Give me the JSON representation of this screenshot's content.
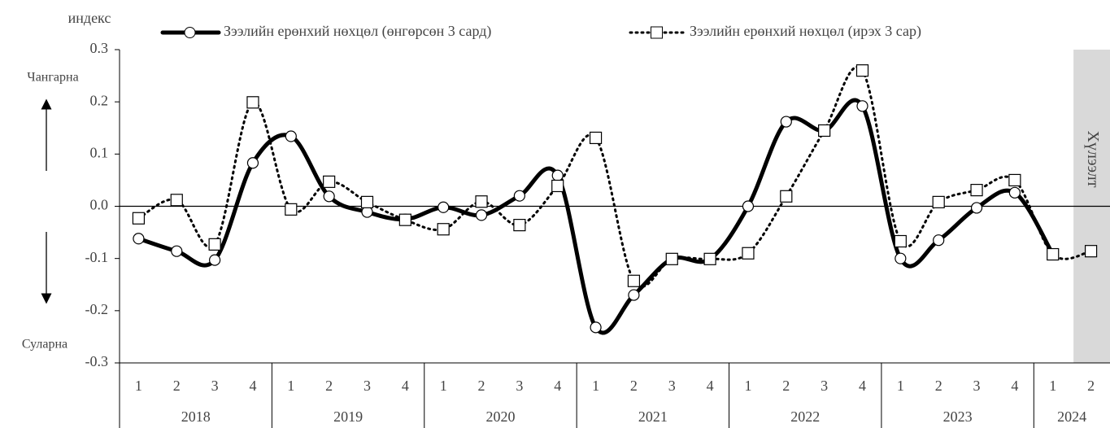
{
  "chart_data": {
    "type": "line",
    "y_label": "индекс",
    "upper_label": "Чангарна",
    "lower_label": "Суларна",
    "forecast_label": "Хүлээлт",
    "categories": [
      "1",
      "2",
      "3",
      "4",
      "1",
      "2",
      "3",
      "4",
      "1",
      "2",
      "3",
      "4",
      "1",
      "2",
      "3",
      "4",
      "1",
      "2",
      "3",
      "4",
      "1",
      "2",
      "3",
      "4",
      "1",
      "2"
    ],
    "groups": [
      {
        "label": "2018",
        "size": 4
      },
      {
        "label": "2019",
        "size": 4
      },
      {
        "label": "2020",
        "size": 4
      },
      {
        "label": "2021",
        "size": 4
      },
      {
        "label": "2022",
        "size": 4
      },
      {
        "label": "2023",
        "size": 4
      },
      {
        "label": "2024",
        "size": 2
      }
    ],
    "series": [
      {
        "name": "Зээлийн ерөнхий нөхцөл (өнгөрсөн 3 сард)",
        "color": "#000000",
        "style": "solid",
        "marker": "circle",
        "values": [
          -0.062,
          -0.086,
          -0.103,
          0.083,
          0.134,
          0.019,
          -0.011,
          -0.025,
          -0.002,
          -0.017,
          0.02,
          0.059,
          -0.232,
          -0.17,
          -0.101,
          -0.101,
          0.0,
          0.162,
          0.145,
          0.192,
          -0.1,
          -0.065,
          -0.003,
          0.026,
          -0.092,
          null
        ]
      },
      {
        "name": "Зээлийн ерөнхий нөхцөл (ирэх 3 сар)",
        "color": "#000000",
        "style": "dotted",
        "marker": "square",
        "values": [
          -0.023,
          0.012,
          -0.073,
          0.199,
          -0.006,
          0.047,
          0.008,
          -0.026,
          -0.044,
          0.009,
          -0.036,
          0.039,
          0.131,
          -0.143,
          -0.101,
          -0.101,
          -0.09,
          0.019,
          0.145,
          0.26,
          -0.067,
          0.008,
          0.031,
          0.05,
          -0.092,
          -0.086
        ]
      }
    ],
    "ylim": [
      -0.3,
      0.3
    ],
    "yticks": [
      -0.3,
      -0.2,
      -0.1,
      {
        "value": 0,
        "label": "0.0"
      },
      0.1,
      0.2,
      0.3
    ],
    "forecast_from": 25
  }
}
